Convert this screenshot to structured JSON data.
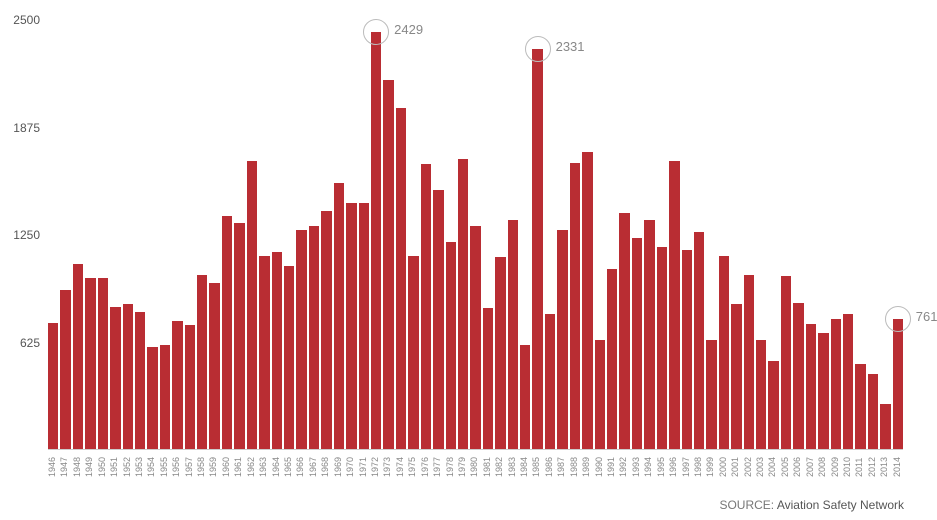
{
  "chart": {
    "type": "bar",
    "bar_color": "#b92d33",
    "background_color": "#ffffff",
    "baseline_color": "#cccccc",
    "y_axis": {
      "min": 0,
      "max": 2500,
      "ticks": [
        625,
        1250,
        1875,
        2500
      ],
      "label_color": "#555555",
      "label_fontsize": 12
    },
    "x_axis": {
      "label_color": "#888888",
      "label_fontsize": 9,
      "rotation": -90
    },
    "callouts": [
      {
        "year": "1972",
        "value": 2429
      },
      {
        "year": "1985",
        "value": 2331
      },
      {
        "year": "2014",
        "value": 761
      }
    ],
    "callout_circle_color": "#bbbbbb",
    "callout_text_color": "#888888",
    "callout_text_fontsize": 13,
    "data": [
      {
        "year": "1946",
        "value": 740
      },
      {
        "year": "1947",
        "value": 930
      },
      {
        "year": "1948",
        "value": 1080
      },
      {
        "year": "1949",
        "value": 1000
      },
      {
        "year": "1950",
        "value": 1000
      },
      {
        "year": "1951",
        "value": 830
      },
      {
        "year": "1952",
        "value": 850
      },
      {
        "year": "1953",
        "value": 800
      },
      {
        "year": "1954",
        "value": 600
      },
      {
        "year": "1955",
        "value": 610
      },
      {
        "year": "1956",
        "value": 750
      },
      {
        "year": "1957",
        "value": 725
      },
      {
        "year": "1958",
        "value": 1015
      },
      {
        "year": "1959",
        "value": 970
      },
      {
        "year": "1960",
        "value": 1360
      },
      {
        "year": "1961",
        "value": 1320
      },
      {
        "year": "1962",
        "value": 1680
      },
      {
        "year": "1963",
        "value": 1130
      },
      {
        "year": "1964",
        "value": 1150
      },
      {
        "year": "1965",
        "value": 1070
      },
      {
        "year": "1966",
        "value": 1280
      },
      {
        "year": "1967",
        "value": 1300
      },
      {
        "year": "1968",
        "value": 1390
      },
      {
        "year": "1969",
        "value": 1550
      },
      {
        "year": "1970",
        "value": 1435
      },
      {
        "year": "1971",
        "value": 1435
      },
      {
        "year": "1972",
        "value": 2429
      },
      {
        "year": "1973",
        "value": 2150
      },
      {
        "year": "1974",
        "value": 1990
      },
      {
        "year": "1975",
        "value": 1130
      },
      {
        "year": "1976",
        "value": 1660
      },
      {
        "year": "1977",
        "value": 1510
      },
      {
        "year": "1978",
        "value": 1210
      },
      {
        "year": "1979",
        "value": 1690
      },
      {
        "year": "1980",
        "value": 1300
      },
      {
        "year": "1981",
        "value": 825
      },
      {
        "year": "1982",
        "value": 1120
      },
      {
        "year": "1983",
        "value": 1340
      },
      {
        "year": "1984",
        "value": 610
      },
      {
        "year": "1985",
        "value": 2331
      },
      {
        "year": "1986",
        "value": 790
      },
      {
        "year": "1987",
        "value": 1280
      },
      {
        "year": "1988",
        "value": 1670
      },
      {
        "year": "1989",
        "value": 1735
      },
      {
        "year": "1990",
        "value": 640
      },
      {
        "year": "1991",
        "value": 1055
      },
      {
        "year": "1992",
        "value": 1380
      },
      {
        "year": "1993",
        "value": 1230
      },
      {
        "year": "1994",
        "value": 1340
      },
      {
        "year": "1995",
        "value": 1180
      },
      {
        "year": "1996",
        "value": 1680
      },
      {
        "year": "1997",
        "value": 1160
      },
      {
        "year": "1998",
        "value": 1265
      },
      {
        "year": "1999",
        "value": 640
      },
      {
        "year": "2000",
        "value": 1130
      },
      {
        "year": "2001",
        "value": 850
      },
      {
        "year": "2002",
        "value": 1020
      },
      {
        "year": "2003",
        "value": 640
      },
      {
        "year": "2004",
        "value": 515
      },
      {
        "year": "2005",
        "value": 1010
      },
      {
        "year": "2006",
        "value": 855
      },
      {
        "year": "2007",
        "value": 730
      },
      {
        "year": "2008",
        "value": 680
      },
      {
        "year": "2009",
        "value": 760
      },
      {
        "year": "2010",
        "value": 790
      },
      {
        "year": "2011",
        "value": 500
      },
      {
        "year": "2012",
        "value": 440
      },
      {
        "year": "2013",
        "value": 265
      },
      {
        "year": "2014",
        "value": 761
      }
    ]
  },
  "source": {
    "label": "SOURCE:",
    "text": "Aviation Safety Network"
  }
}
